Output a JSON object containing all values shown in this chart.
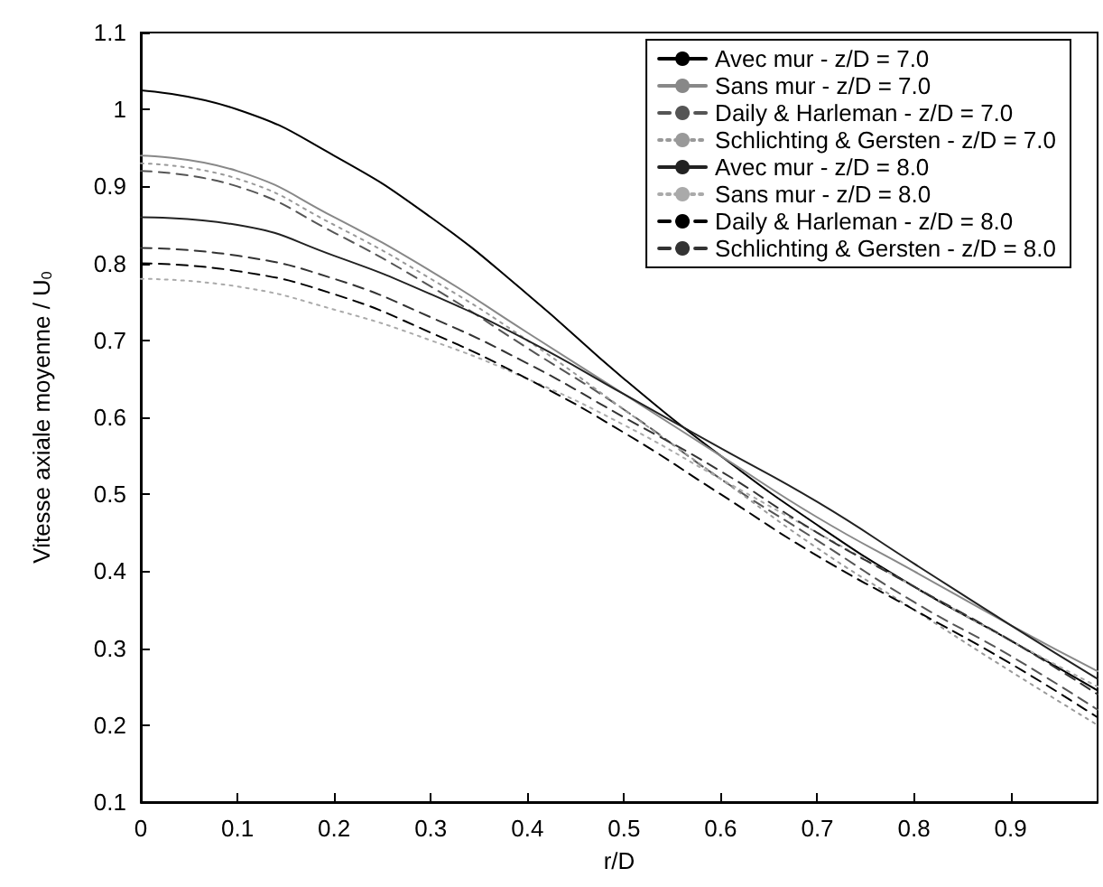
{
  "chart_data": {
    "type": "line",
    "xlabel": "r/D",
    "ylabel": "Vitesse axiale moyenne / U$_{0}$",
    "x": [
      0,
      0.1,
      0.2,
      0.3,
      0.4,
      0.5,
      0.6,
      0.7,
      0.8,
      0.9,
      0.99
    ],
    "xlim": [
      0,
      0.99
    ],
    "xticks": [
      0,
      0.1,
      0.2,
      0.3,
      0.4,
      0.5,
      0.6,
      0.7,
      0.8,
      0.9
    ],
    "ylim": [
      0.1,
      1.1
    ],
    "yticks": [
      0.1,
      0.2,
      0.3,
      0.4,
      0.5,
      0.6,
      0.7,
      0.8,
      0.9,
      1,
      1.1
    ],
    "grid": false,
    "legend": "top right",
    "marker": "none",
    "series": [
      {
        "name": "Avec mur - z/D = 7.0",
        "color": "#000000",
        "line_style": "solid",
        "values": [
          1.025,
          1.0,
          0.94,
          0.86,
          0.76,
          0.65,
          0.55,
          0.46,
          0.38,
          0.31,
          0.245
        ]
      },
      {
        "name": "Sans mur - z/D = 7.0",
        "color": "#888888",
        "line_style": "solid",
        "values": [
          0.94,
          0.92,
          0.86,
          0.79,
          0.71,
          0.63,
          0.55,
          0.47,
          0.4,
          0.33,
          0.27
        ]
      },
      {
        "name": "Daily & Harleman - z/D = 7.0",
        "color": "#555555",
        "line_style": "dashed",
        "values": [
          0.92,
          0.9,
          0.84,
          0.77,
          0.69,
          0.61,
          0.52,
          0.44,
          0.36,
          0.29,
          0.22
        ]
      },
      {
        "name": "Schlichting & Gersten - z/D = 7.0",
        "color": "#999999",
        "line_style": "dotted",
        "values": [
          0.93,
          0.91,
          0.85,
          0.78,
          0.7,
          0.61,
          0.52,
          0.43,
          0.35,
          0.27,
          0.2
        ]
      },
      {
        "name": "Avec mur - z/D = 8.0",
        "color": "#222222",
        "line_style": "solid",
        "values": [
          0.86,
          0.85,
          0.81,
          0.76,
          0.7,
          0.63,
          0.56,
          0.49,
          0.41,
          0.33,
          0.26
        ]
      },
      {
        "name": "Sans mur - z/D = 8.0",
        "color": "#aaaaaa",
        "line_style": "dotted",
        "values": [
          0.78,
          0.77,
          0.74,
          0.7,
          0.65,
          0.59,
          0.52,
          0.45,
          0.38,
          0.31,
          0.25
        ]
      },
      {
        "name": "Daily & Harleman - z/D = 8.0",
        "color": "#000000",
        "line_style": "dashed",
        "values": [
          0.8,
          0.79,
          0.76,
          0.71,
          0.65,
          0.58,
          0.5,
          0.42,
          0.35,
          0.28,
          0.21
        ]
      },
      {
        "name": "Schlichting & Gersten - z/D = 8.0",
        "color": "#333333",
        "line_style": "dashed",
        "values": [
          0.82,
          0.81,
          0.78,
          0.73,
          0.67,
          0.6,
          0.53,
          0.45,
          0.38,
          0.31,
          0.24
        ]
      }
    ]
  }
}
